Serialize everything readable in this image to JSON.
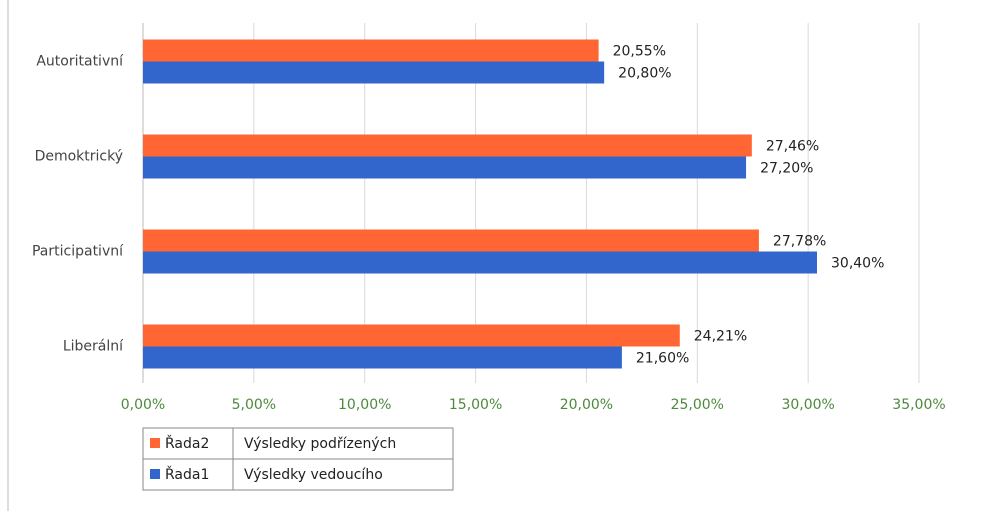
{
  "chart_data": {
    "type": "hbar",
    "categories": [
      "Autoritativní",
      "Demoktrický",
      "Participativní",
      "Liberální"
    ],
    "series": [
      {
        "name": "Řada2",
        "description": "Výsledky podřízených",
        "color": "#ff6633",
        "values": [
          20.55,
          27.46,
          27.78,
          24.21
        ],
        "value_labels": [
          "20,55%",
          "27,46%",
          "27,78%",
          "24,21%"
        ]
      },
      {
        "name": "Řada1",
        "description": "Výsledky vedoucího",
        "color": "#3366cc",
        "values": [
          20.8,
          27.2,
          30.4,
          21.6
        ],
        "value_labels": [
          "20,80%",
          "27,20%",
          "30,40%",
          "21,60%"
        ]
      }
    ],
    "xlim": [
      0,
      35
    ],
    "xticks": [
      {
        "value": 0,
        "label": "0,00%"
      },
      {
        "value": 5,
        "label": "5,00%"
      },
      {
        "value": 10,
        "label": "10,00%"
      },
      {
        "value": 15,
        "label": "15,00%"
      },
      {
        "value": 20,
        "label": "20,00%"
      },
      {
        "value": 25,
        "label": "25,00%"
      },
      {
        "value": 30,
        "label": "30,00%"
      },
      {
        "value": 35,
        "label": "35,00%"
      }
    ],
    "grid": true
  }
}
